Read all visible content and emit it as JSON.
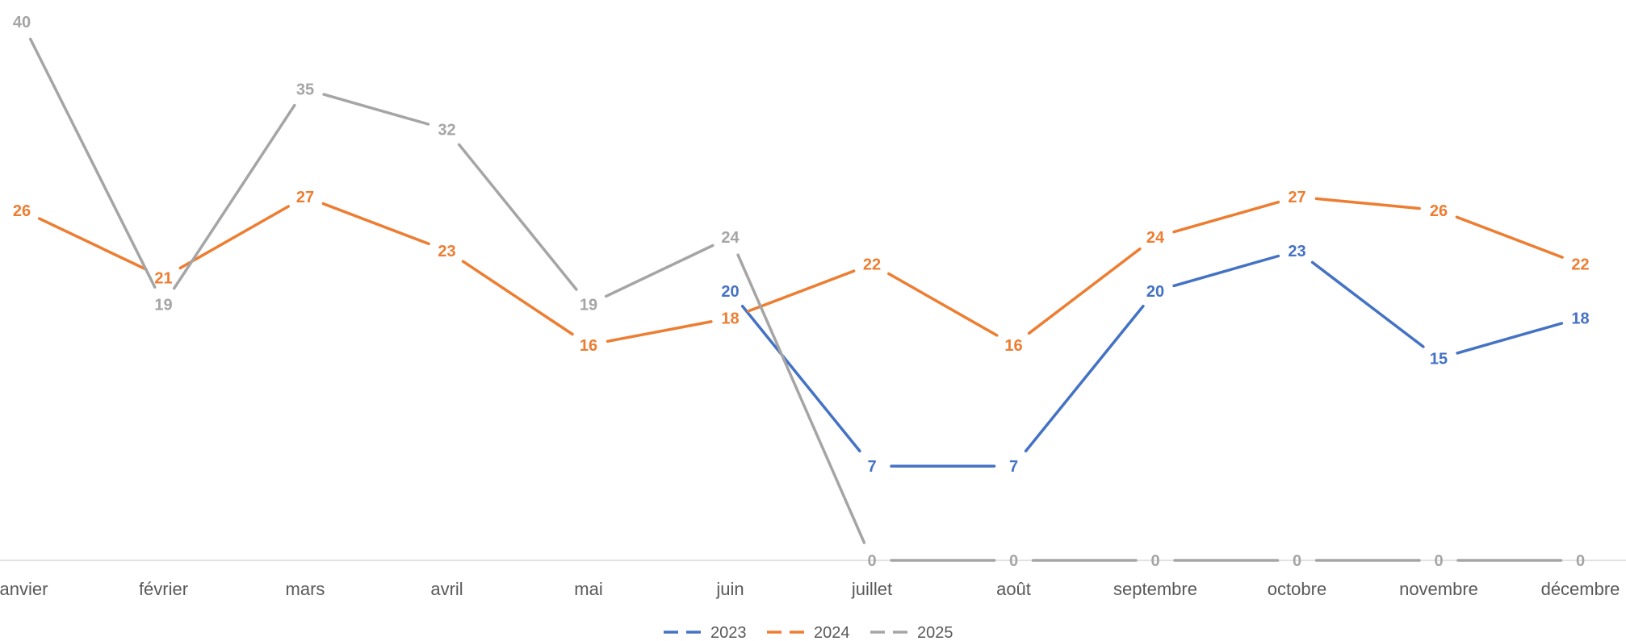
{
  "chart_data": {
    "type": "line",
    "title": "",
    "xlabel": "",
    "ylabel": "",
    "categories": [
      "janvier",
      "février",
      "mars",
      "avril",
      "mai",
      "juin",
      "juillet",
      "août",
      "septembre",
      "octobre",
      "novembre",
      "décembre"
    ],
    "ylim": [
      0,
      41
    ],
    "grid": false,
    "legend_position": "bottom",
    "series": [
      {
        "name": "2023",
        "color": "#4472C4",
        "values": [
          null,
          null,
          null,
          null,
          null,
          20,
          7,
          7,
          20,
          23,
          15,
          18
        ]
      },
      {
        "name": "2024",
        "color": "#ED7D31",
        "values": [
          26,
          21,
          27,
          23,
          16,
          18,
          22,
          16,
          24,
          27,
          26,
          22
        ]
      },
      {
        "name": "2025",
        "color": "#A5A5A5",
        "values": [
          40,
          19,
          35,
          32,
          19,
          24,
          0,
          0,
          0,
          0,
          0,
          0
        ]
      }
    ]
  }
}
